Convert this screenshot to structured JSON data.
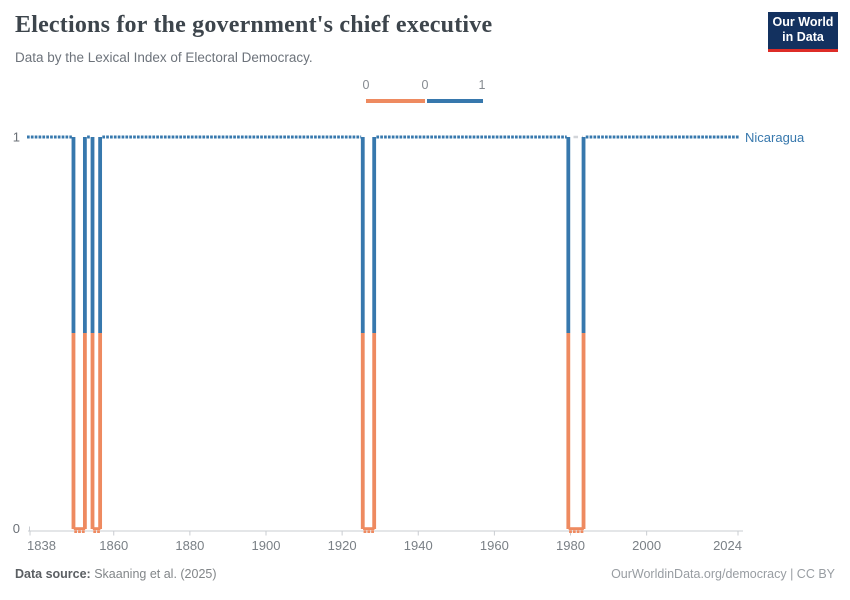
{
  "header": {
    "title": "Elections for the government's chief executive",
    "subtitle": "Data by the Lexical Index of Electoral Democracy.",
    "logo_line1": "Our World",
    "logo_line2": "in Data"
  },
  "legend": {
    "labels": [
      "0",
      "0",
      "1"
    ],
    "zero_color": "#ee8a60",
    "one_color": "#3778ad"
  },
  "colors": {
    "series_one": "#3778ad",
    "series_zero": "#ee8a60",
    "axis": "#c9ccd1",
    "tick_label": "#7a8086",
    "y_label": "#6b7077",
    "no_data": "#d2d5d9"
  },
  "chart_data": {
    "type": "line",
    "title": "Elections for the government's chief executive",
    "subtitle": "Data by the Lexical Index of Electoral Democracy.",
    "entity_label": "Nicaragua",
    "x_range": [
      1838,
      2024
    ],
    "ylim": [
      0,
      1
    ],
    "x_ticks": [
      1838,
      1860,
      1880,
      1900,
      1920,
      1940,
      1960,
      1980,
      2000,
      2024
    ],
    "y_ticks": [
      1,
      0
    ],
    "grid": false,
    "legend_position": "top-center",
    "series": [
      {
        "name": "Nicaragua",
        "value_runs": [
          {
            "from": 1838,
            "to": 1849,
            "value": 1
          },
          {
            "from": 1850,
            "to": 1852,
            "value": 0
          },
          {
            "from": 1853,
            "to": 1854,
            "value": 1
          },
          {
            "from": 1855,
            "to": 1856,
            "value": 0
          },
          {
            "from": 1857,
            "to": 1925,
            "value": 1
          },
          {
            "from": 1926,
            "to": 1928,
            "value": 0
          },
          {
            "from": 1929,
            "to": 1979,
            "value": 1
          },
          {
            "from": 1980,
            "to": 1983,
            "value": 0,
            "gap_dash_at_top": true
          },
          {
            "from": 1984,
            "to": 2024,
            "value": 1
          }
        ]
      }
    ]
  },
  "footer": {
    "source_label": "Data source:",
    "source_text": "Skaaning et al. (2025)",
    "right_text": "OurWorldinData.org/democracy | CC BY"
  }
}
